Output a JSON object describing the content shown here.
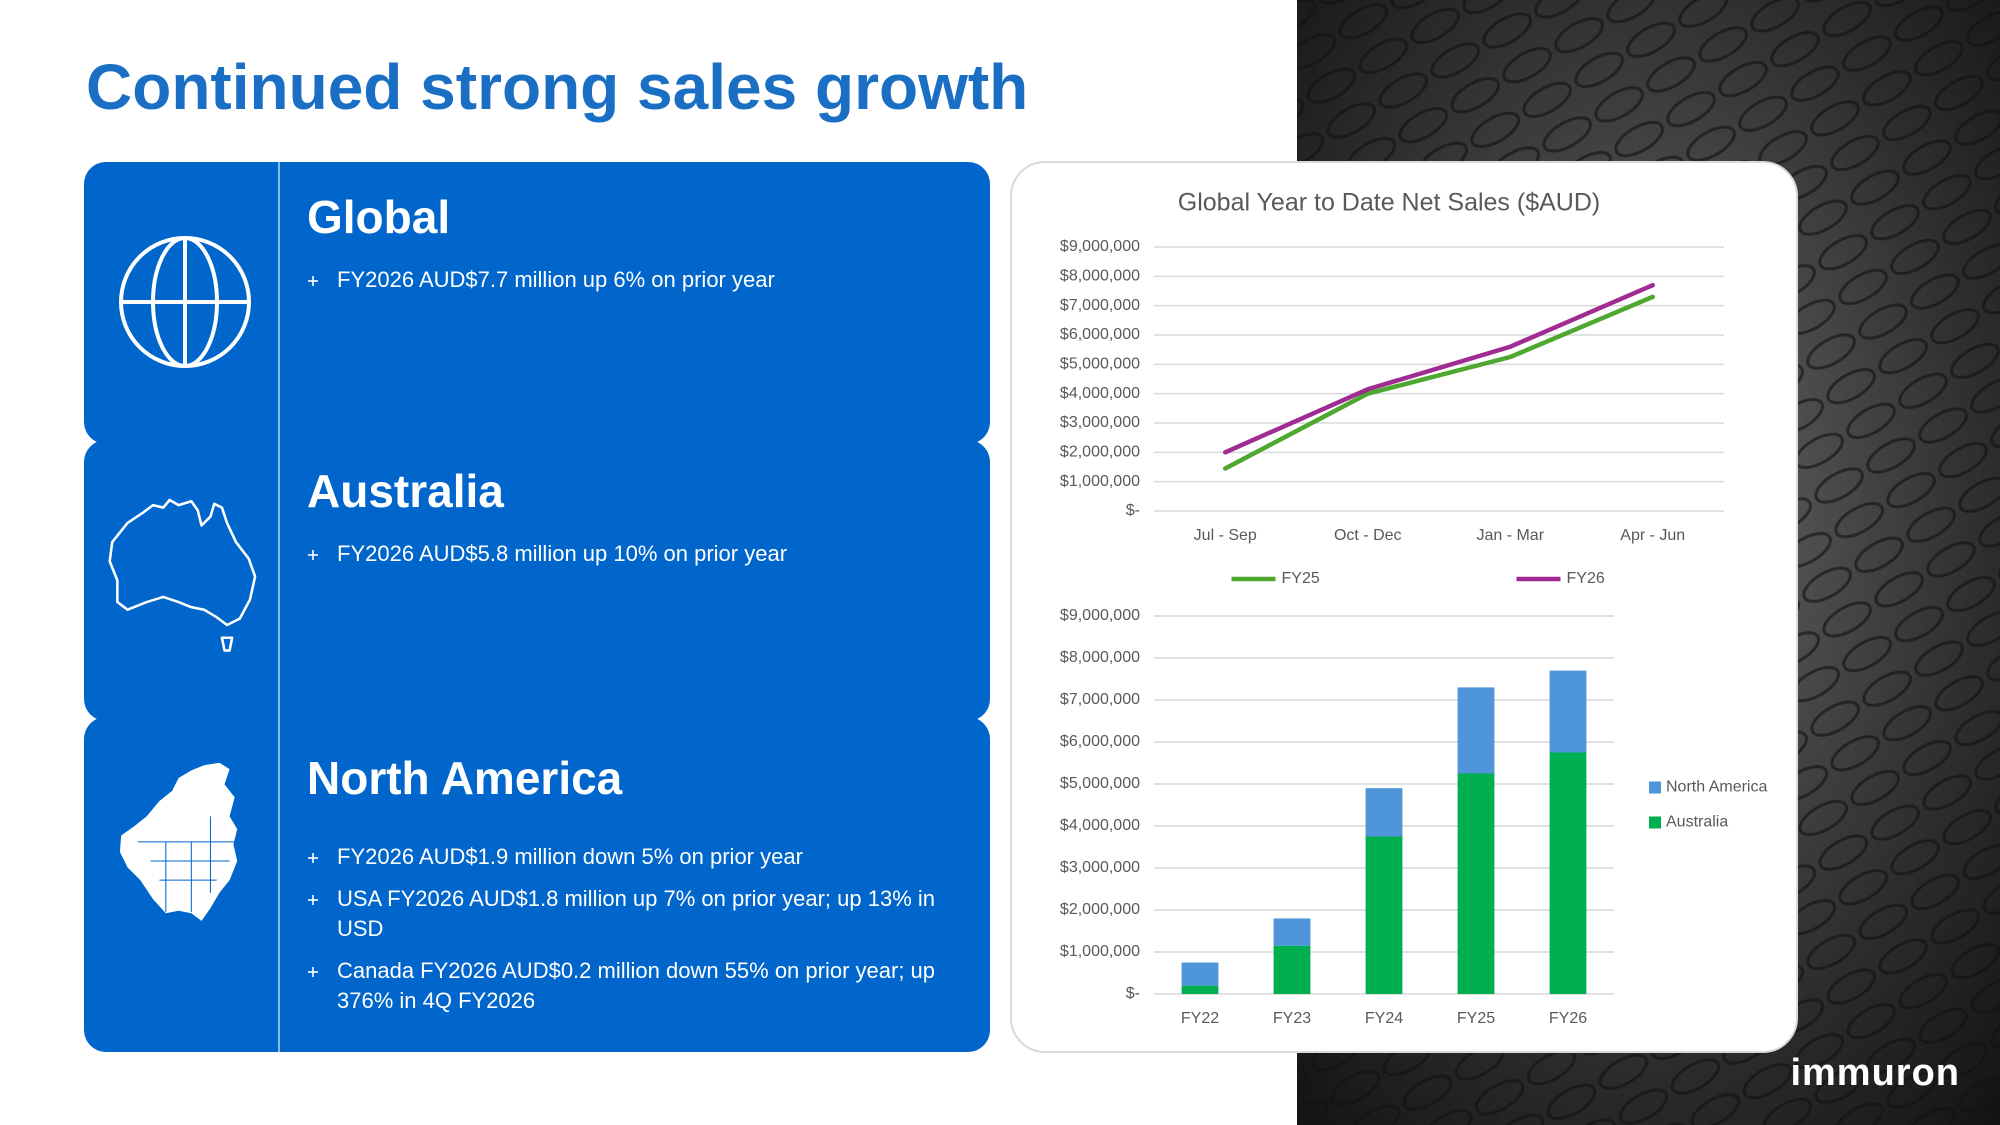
{
  "slide": {
    "title": "Continued strong sales growth",
    "logo": "immuron"
  },
  "panels": [
    {
      "heading": "Global",
      "bullets": [
        "FY2026 AUD$7.7 million up 6% on prior year"
      ]
    },
    {
      "heading": "Australia",
      "bullets": [
        "FY2026 AUD$5.8 million up 10% on prior year"
      ]
    },
    {
      "heading": "North America",
      "bullets": [
        "FY2026 AUD$1.9 million down 5% on prior year",
        "USA FY2026 AUD$1.8 million up 7% on prior year; up 13% in USD",
        "Canada FY2026 AUD$0.2 million down 55% on prior year; up 376% in 4Q FY2026"
      ]
    }
  ],
  "chart_data": [
    {
      "type": "line",
      "title": "Global Year to Date Net Sales ($AUD)",
      "categories": [
        "Jul - Sep",
        "Oct - Dec",
        "Jan - Mar",
        "Apr - Jun"
      ],
      "series": [
        {
          "name": "FY25",
          "color": "#4ea72e",
          "values": [
            1450000,
            4000000,
            5250000,
            7300000
          ]
        },
        {
          "name": "FY26",
          "color": "#a02b93",
          "values": [
            2000000,
            4150000,
            5600000,
            7700000
          ]
        }
      ],
      "ylim": [
        0,
        9000000
      ],
      "yticks": [
        {
          "value": 0,
          "label": "$-"
        },
        {
          "value": 1000000,
          "label": "$1,000,000"
        },
        {
          "value": 2000000,
          "label": "$2,000,000"
        },
        {
          "value": 3000000,
          "label": "$3,000,000"
        },
        {
          "value": 4000000,
          "label": "$4,000,000"
        },
        {
          "value": 5000000,
          "label": "$5,000,000"
        },
        {
          "value": 6000000,
          "label": "$6,000,000"
        },
        {
          "value": 7000000,
          "label": "$7,000,000"
        },
        {
          "value": 8000000,
          "label": "$8,000,000"
        },
        {
          "value": 9000000,
          "label": "$9,000,000"
        }
      ],
      "grid": true,
      "legend": "bottom"
    },
    {
      "type": "bar",
      "stacked": true,
      "categories": [
        "FY22",
        "FY23",
        "FY24",
        "FY25",
        "FY26"
      ],
      "series": [
        {
          "name": "Australia",
          "color": "#00b050",
          "values": [
            200000,
            1150000,
            3750000,
            5250000,
            5750000
          ]
        },
        {
          "name": "North America",
          "color": "#4e95d9",
          "values": [
            550000,
            650000,
            1150000,
            2050000,
            1950000
          ]
        }
      ],
      "ylim": [
        0,
        9000000
      ],
      "yticks": [
        {
          "value": 0,
          "label": "$-"
        },
        {
          "value": 1000000,
          "label": "$1,000,000"
        },
        {
          "value": 2000000,
          "label": "$2,000,000"
        },
        {
          "value": 3000000,
          "label": "$3,000,000"
        },
        {
          "value": 4000000,
          "label": "$4,000,000"
        },
        {
          "value": 5000000,
          "label": "$5,000,000"
        },
        {
          "value": 6000000,
          "label": "$6,000,000"
        },
        {
          "value": 7000000,
          "label": "$7,000,000"
        },
        {
          "value": 8000000,
          "label": "$8,000,000"
        },
        {
          "value": 9000000,
          "label": "$9,000,000"
        }
      ],
      "grid": true,
      "legend": "right"
    }
  ]
}
